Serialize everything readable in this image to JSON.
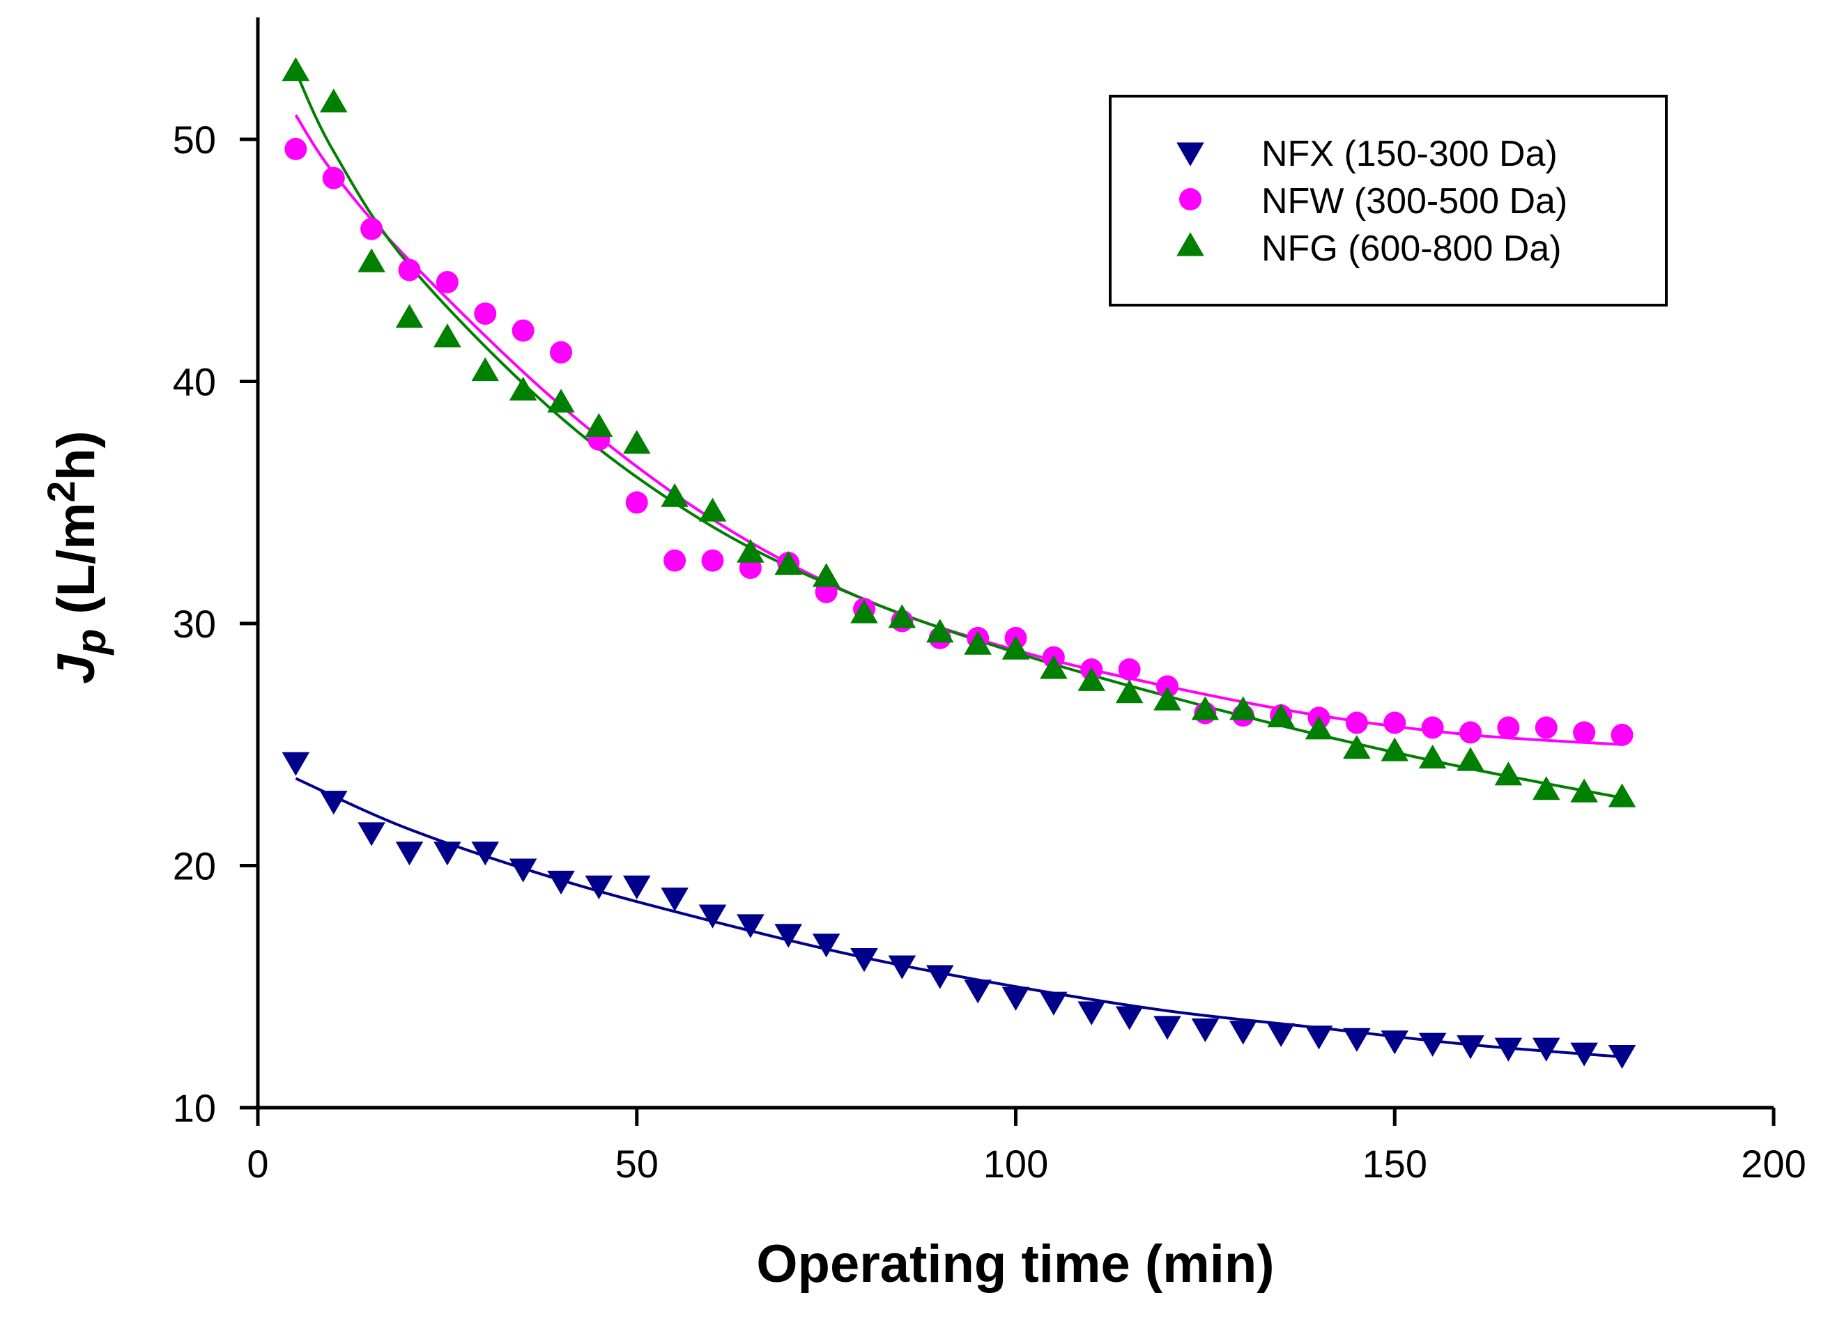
{
  "chart_data": {
    "type": "scatter",
    "title": "",
    "xlabel": "Operating time (min)",
    "ylabel": {
      "main": "J",
      "sub": "p",
      "unit_pre": " (L/m",
      "unit_sup": "2",
      "unit_post": "h)"
    },
    "xlim": [
      0,
      200
    ],
    "ylim": [
      10,
      55
    ],
    "xticks": [
      0,
      50,
      100,
      150,
      200
    ],
    "yticks": [
      10,
      20,
      30,
      40,
      50
    ],
    "xtick_labels": [
      "0",
      "50",
      "100",
      "150",
      "200"
    ],
    "ytick_labels": [
      "10",
      "20",
      "30",
      "40",
      "50"
    ],
    "grid": false,
    "legend_position": "top-right",
    "series": [
      {
        "name": "NFX (150-300 Da)",
        "marker": "triangle-down",
        "color": "#00008b",
        "x": [
          5,
          10,
          15,
          20,
          25,
          30,
          35,
          40,
          45,
          50,
          55,
          60,
          65,
          70,
          75,
          80,
          85,
          90,
          95,
          100,
          105,
          110,
          115,
          120,
          125,
          130,
          135,
          140,
          145,
          150,
          155,
          160,
          165,
          170,
          175,
          180
        ],
        "y": [
          24.3,
          22.7,
          21.4,
          20.6,
          20.6,
          20.6,
          19.9,
          19.4,
          19.2,
          19.2,
          18.7,
          18.0,
          17.6,
          17.2,
          16.8,
          16.2,
          15.9,
          15.5,
          14.9,
          14.6,
          14.4,
          14.0,
          13.8,
          13.4,
          13.3,
          13.2,
          13.1,
          13.0,
          12.9,
          12.8,
          12.7,
          12.6,
          12.5,
          12.5,
          12.3,
          12.2
        ],
        "fit": {
          "x": [
            5,
            20,
            40,
            60,
            80,
            100,
            120,
            140,
            160,
            180
          ],
          "y": [
            23.6,
            21.5,
            19.4,
            17.7,
            16.2,
            15.0,
            14.0,
            13.3,
            12.6,
            12.1
          ]
        }
      },
      {
        "name": "NFW (300-500 Da)",
        "marker": "circle",
        "color": "#ff00ff",
        "x": [
          5,
          10,
          15,
          20,
          25,
          30,
          35,
          40,
          45,
          50,
          55,
          60,
          65,
          70,
          75,
          80,
          85,
          90,
          95,
          100,
          105,
          110,
          115,
          120,
          125,
          130,
          135,
          140,
          145,
          150,
          155,
          160,
          165,
          170,
          175,
          180
        ],
        "y": [
          49.6,
          48.4,
          46.3,
          44.6,
          44.1,
          42.8,
          42.1,
          41.2,
          37.6,
          35.0,
          32.6,
          32.6,
          32.3,
          32.5,
          31.3,
          30.6,
          30.1,
          29.4,
          29.4,
          29.4,
          28.6,
          28.1,
          28.1,
          27.4,
          26.3,
          26.2,
          26.2,
          26.1,
          25.9,
          25.9,
          25.7,
          25.5,
          25.7,
          25.7,
          25.5,
          25.4
        ],
        "fit": {
          "x": [
            5,
            10,
            20,
            40,
            60,
            80,
            100,
            120,
            140,
            160,
            180
          ],
          "y": [
            51.0,
            48.6,
            45.0,
            39.0,
            34.3,
            31.0,
            28.9,
            27.4,
            26.2,
            25.4,
            25.0
          ]
        }
      },
      {
        "name": "NFG (600-800 Da)",
        "marker": "triangle-up",
        "color": "#008000",
        "x": [
          5,
          10,
          15,
          20,
          25,
          30,
          35,
          40,
          45,
          50,
          55,
          60,
          65,
          70,
          75,
          80,
          85,
          90,
          95,
          100,
          105,
          110,
          115,
          120,
          125,
          130,
          135,
          140,
          145,
          150,
          155,
          160,
          165,
          170,
          175,
          180
        ],
        "y": [
          52.8,
          51.5,
          44.9,
          42.6,
          41.8,
          40.4,
          39.6,
          39.1,
          38.1,
          37.4,
          35.2,
          34.6,
          32.9,
          32.4,
          31.9,
          30.4,
          30.2,
          29.6,
          29.1,
          28.9,
          28.1,
          27.6,
          27.1,
          26.8,
          26.4,
          26.4,
          26.1,
          25.6,
          24.8,
          24.7,
          24.4,
          24.3,
          23.7,
          23.1,
          23.0,
          22.8
        ],
        "fit": {
          "x": [
            5,
            10,
            20,
            40,
            60,
            80,
            100,
            120,
            140,
            160,
            180
          ],
          "y": [
            52.8,
            49.5,
            44.8,
            38.5,
            34.0,
            31.0,
            28.8,
            27.0,
            25.4,
            24.0,
            22.8
          ]
        }
      }
    ]
  }
}
